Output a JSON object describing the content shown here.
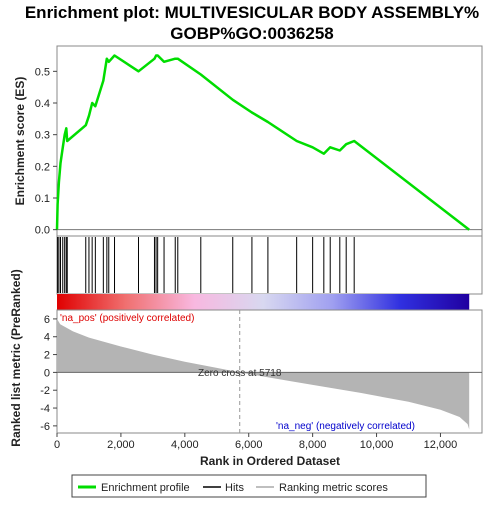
{
  "chart_data": {
    "type": "line",
    "title_line1": "Enrichment plot: MULTIVESICULAR BODY ASSEMBLY%",
    "title_line2": "GOBP%GO:0036258",
    "xlabel": "Rank in Ordered Dataset",
    "ylabel_top": "Enrichment score (ES)",
    "ylabel_bottom": "Ranked list metric (PreRanked)",
    "xlim": [
      0,
      13300
    ],
    "ylim_es": [
      -0.02,
      0.58
    ],
    "ylim_metric": [
      -6.8,
      7.0
    ],
    "x_ticks": [
      0,
      2000,
      4000,
      6000,
      8000,
      10000,
      12000
    ],
    "x_tick_labels": [
      "0",
      "2,000",
      "4,000",
      "6,000",
      "8,000",
      "10,000",
      "12,000"
    ],
    "es_ticks": [
      0.0,
      0.1,
      0.2,
      0.3,
      0.4,
      0.5
    ],
    "es_tick_labels": [
      "0.0",
      "0.1",
      "0.2",
      "0.3",
      "0.4",
      "0.5"
    ],
    "metric_ticks": [
      6,
      4,
      2,
      0,
      -2,
      -4,
      -6
    ],
    "metric_tick_labels": [
      "6",
      "4",
      "2",
      "0",
      "-2",
      "-4",
      "-6"
    ],
    "hits": [
      20,
      60,
      110,
      180,
      240,
      290,
      320,
      900,
      1000,
      1100,
      1200,
      1450,
      1560,
      1620,
      1800,
      2550,
      3050,
      3100,
      3150,
      3350,
      3700,
      3780,
      4500,
      5500,
      6100,
      6600,
      7500,
      8000,
      8350,
      8550,
      8850,
      9050,
      9300
    ],
    "es_series": {
      "name": "Enrichment profile",
      "x": [
        0,
        20,
        60,
        110,
        180,
        240,
        290,
        320,
        900,
        1000,
        1100,
        1200,
        1450,
        1560,
        1620,
        1800,
        2550,
        3050,
        3100,
        3150,
        3350,
        3700,
        3780,
        4500,
        5500,
        6100,
        6600,
        7500,
        8000,
        8350,
        8550,
        8850,
        9050,
        9300,
        12900
      ],
      "y": [
        0.0,
        0.08,
        0.15,
        0.21,
        0.26,
        0.3,
        0.32,
        0.28,
        0.33,
        0.36,
        0.4,
        0.39,
        0.47,
        0.54,
        0.53,
        0.55,
        0.5,
        0.54,
        0.55,
        0.55,
        0.53,
        0.54,
        0.54,
        0.49,
        0.41,
        0.37,
        0.34,
        0.28,
        0.26,
        0.24,
        0.26,
        0.25,
        0.27,
        0.28,
        0.0
      ]
    },
    "metric_series": {
      "x": [
        0,
        100,
        500,
        1000,
        2000,
        3000,
        4000,
        5000,
        5718,
        6500,
        8000,
        9500,
        11000,
        12000,
        12600,
        12850,
        12900
      ],
      "y": [
        6.0,
        5.4,
        4.6,
        3.9,
        2.9,
        2.0,
        1.2,
        0.5,
        0.0,
        -0.5,
        -1.4,
        -2.3,
        -3.3,
        -4.2,
        -5.0,
        -5.8,
        -6.4
      ]
    },
    "zero_cross": 5718,
    "zero_cross_label": "Zero cross at 5718",
    "na_pos_label": "'na_pos' (positively correlated)",
    "na_neg_label": "'na_neg' (negatively correlated)",
    "legend": [
      {
        "label": "Enrichment profile",
        "color": "#00dd00"
      },
      {
        "label": "Hits",
        "color": "#000000"
      },
      {
        "label": "Ranking metric scores",
        "color": "#aaaaaa"
      }
    ],
    "colors": {
      "es_line": "#00dd00",
      "metric_fill": "#b4b4b4",
      "pos_label": "#dd0000",
      "neg_label": "#0000cc",
      "heat_gradient": [
        "#e00000",
        "#f07070",
        "#f8b8e0",
        "#d8d8f0",
        "#a0a0f0",
        "#3030e0",
        "#2000a0"
      ]
    }
  }
}
